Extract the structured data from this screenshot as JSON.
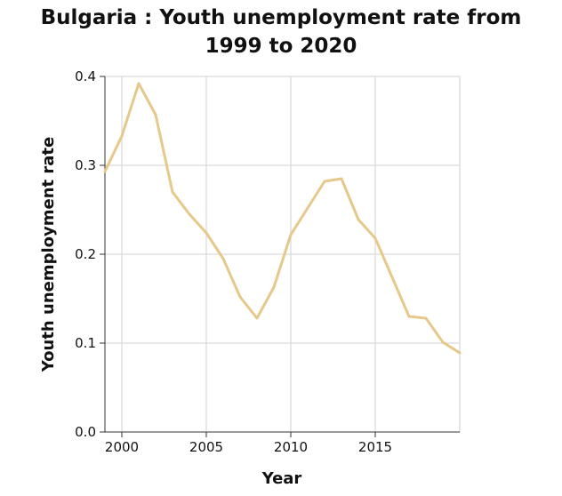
{
  "chart_data": {
    "type": "line",
    "title_line1": "Bulgaria : Youth unemployment rate from",
    "title_line2": "1999 to 2020",
    "xlabel": "Year",
    "ylabel": "Youth unemployment rate",
    "xlim": [
      1999,
      2020
    ],
    "ylim": [
      0,
      0.4
    ],
    "xticks": [
      2000,
      2005,
      2010,
      2015
    ],
    "xtick_labels": [
      "2000",
      "2005",
      "2010",
      "2015"
    ],
    "yticks": [
      0.0,
      0.1,
      0.2,
      0.3,
      0.4
    ],
    "ytick_labels": [
      "0.0",
      "0.1",
      "0.2",
      "0.3",
      "0.4"
    ],
    "grid": true,
    "series": [
      {
        "name": "Youth unemployment rate",
        "color": "#e6c98a",
        "x": [
          1999,
          2000,
          2001,
          2002,
          2003,
          2004,
          2005,
          2006,
          2007,
          2008,
          2009,
          2010,
          2011,
          2012,
          2013,
          2014,
          2015,
          2016,
          2017,
          2018,
          2019,
          2020
        ],
        "y": [
          0.293,
          0.333,
          0.392,
          0.357,
          0.27,
          0.245,
          0.224,
          0.195,
          0.152,
          0.128,
          0.163,
          0.222,
          0.252,
          0.282,
          0.285,
          0.239,
          0.218,
          0.174,
          0.13,
          0.128,
          0.101,
          0.089
        ]
      }
    ]
  }
}
